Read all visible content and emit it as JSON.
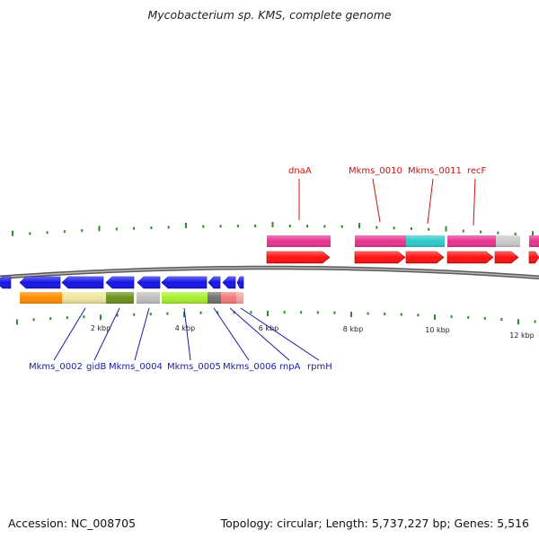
{
  "title": "Mycobacterium sp. KMS, complete genome",
  "footer": {
    "accession": "Accession: NC_008705",
    "summary": "Topology: circular; Length: 5,737,227 bp; Genes: 5,516"
  },
  "colors": {
    "backbone": "#8a8a8a",
    "tick": "#2e8b2e",
    "reverse_label": "#1a1aa8",
    "forward_label": "#cc1111"
  },
  "scale_labels": [
    "2 kbp",
    "4 kbp",
    "6 kbp",
    "8 kbp",
    "10 kbp",
    "12 kbp"
  ],
  "genes": {
    "reverse_labels": [
      "Mkms_0002",
      "gidB",
      "Mkms_0004",
      "Mkms_0005",
      "Mkms_0006",
      "rnpA",
      "rpmH"
    ],
    "forward_labels": [
      "dnaA",
      "Mkms_0010",
      "Mkms_0011",
      "recF"
    ]
  }
}
